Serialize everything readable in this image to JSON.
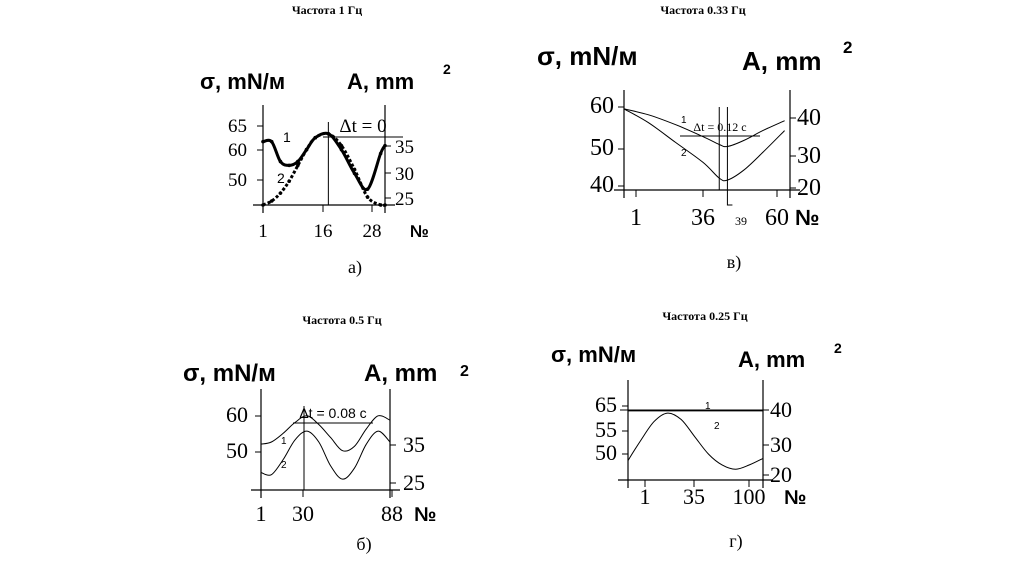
{
  "chart_data": [
    {
      "type": "line",
      "title": "Частота 1 Гц",
      "ylabel_left": "σ, mN/м",
      "ylabel_right": "A, mm",
      "ylabel_right_sup": "2",
      "xlabel": "№",
      "x_ticks": [
        "1",
        "16",
        "28"
      ],
      "y_left_ticks": [
        "65",
        "60",
        "50"
      ],
      "y_right_ticks": [
        "35",
        "30",
        "25"
      ],
      "annotation": "Δt = 0",
      "caption": "а)",
      "series": [
        {
          "name": "1",
          "x": [
            1,
            3,
            5,
            7,
            9,
            11,
            13,
            16,
            19,
            22,
            25,
            28,
            29
          ],
          "y": [
            60,
            60,
            55,
            54,
            55,
            58,
            61,
            62,
            58,
            52,
            48,
            57,
            59
          ]
        },
        {
          "name": "2",
          "x": [
            1,
            3,
            5,
            7,
            9,
            11,
            13,
            16,
            19,
            22,
            25,
            28,
            29
          ],
          "y": [
            44,
            45,
            47,
            50,
            54,
            58,
            61,
            62,
            59,
            53,
            46,
            44,
            44
          ]
        }
      ]
    },
    {
      "type": "line",
      "title": "Частота 0.33 Гц",
      "ylabel_left": "σ, mN/м",
      "ylabel_right": "A, mm",
      "ylabel_right_sup": "2",
      "xlabel": "№",
      "x_ticks": [
        "1",
        "36",
        "60"
      ],
      "extra_tick": "39",
      "y_left_ticks": [
        "60",
        "50",
        "40"
      ],
      "y_right_ticks": [
        "40",
        "30",
        "20"
      ],
      "annotation": "Δt = 0.12 c",
      "caption": "в)",
      "series": [
        {
          "name": "1",
          "x": [
            1,
            10,
            20,
            30,
            36,
            39,
            45,
            52,
            60
          ],
          "y": [
            58.5,
            57,
            54.5,
            51.5,
            49.5,
            49,
            50.5,
            53,
            55.5
          ]
        },
        {
          "name": "2",
          "x": [
            1,
            10,
            20,
            30,
            36,
            39,
            45,
            52,
            60
          ],
          "y": [
            58.5,
            55,
            50,
            45,
            41,
            40.5,
            43,
            47.5,
            53
          ]
        }
      ]
    },
    {
      "type": "line",
      "title": "Частота 0.5 Гц",
      "ylabel_left": "σ, mN/м",
      "ylabel_right": "A, mm",
      "ylabel_right_sup": "2",
      "xlabel": "№",
      "x_ticks": [
        "1",
        "30",
        "88"
      ],
      "y_left_ticks": [
        "60",
        "50"
      ],
      "y_right_ticks": [
        "35",
        "25"
      ],
      "annotation": "Δt = 0.08 c",
      "caption": "б)",
      "series": [
        {
          "name": "1",
          "x": [
            1,
            8,
            16,
            24,
            32,
            40,
            48,
            56,
            64,
            72,
            80,
            88
          ],
          "y": [
            50.5,
            51,
            53,
            55.5,
            57,
            55,
            52,
            49,
            50,
            54,
            57,
            56
          ]
        },
        {
          "name": "2",
          "x": [
            1,
            8,
            16,
            24,
            32,
            40,
            48,
            56,
            64,
            72,
            80,
            88
          ],
          "y": [
            44,
            43.5,
            47,
            51.5,
            53.5,
            51,
            45.5,
            42.5,
            45,
            50.5,
            53.5,
            51
          ]
        }
      ]
    },
    {
      "type": "line",
      "title": "Частота 0.25 Гц",
      "ylabel_left": "σ, mN/м",
      "ylabel_right": "A, mm",
      "ylabel_right_sup": "2",
      "xlabel": "№",
      "x_ticks": [
        "1",
        "35",
        "100"
      ],
      "y_left_ticks": [
        "65",
        "55",
        "50"
      ],
      "y_right_ticks": [
        "40",
        "30",
        "20"
      ],
      "caption": "г)",
      "series": [
        {
          "name": "1",
          "x": [
            1,
            100
          ],
          "y": [
            61,
            61
          ]
        },
        {
          "name": "2",
          "x": [
            1,
            10,
            20,
            30,
            40,
            50,
            60,
            70,
            80,
            90,
            100
          ],
          "y": [
            49.5,
            54,
            58.5,
            60.5,
            59,
            55,
            51,
            48.5,
            47.5,
            48.5,
            50
          ]
        }
      ]
    }
  ]
}
